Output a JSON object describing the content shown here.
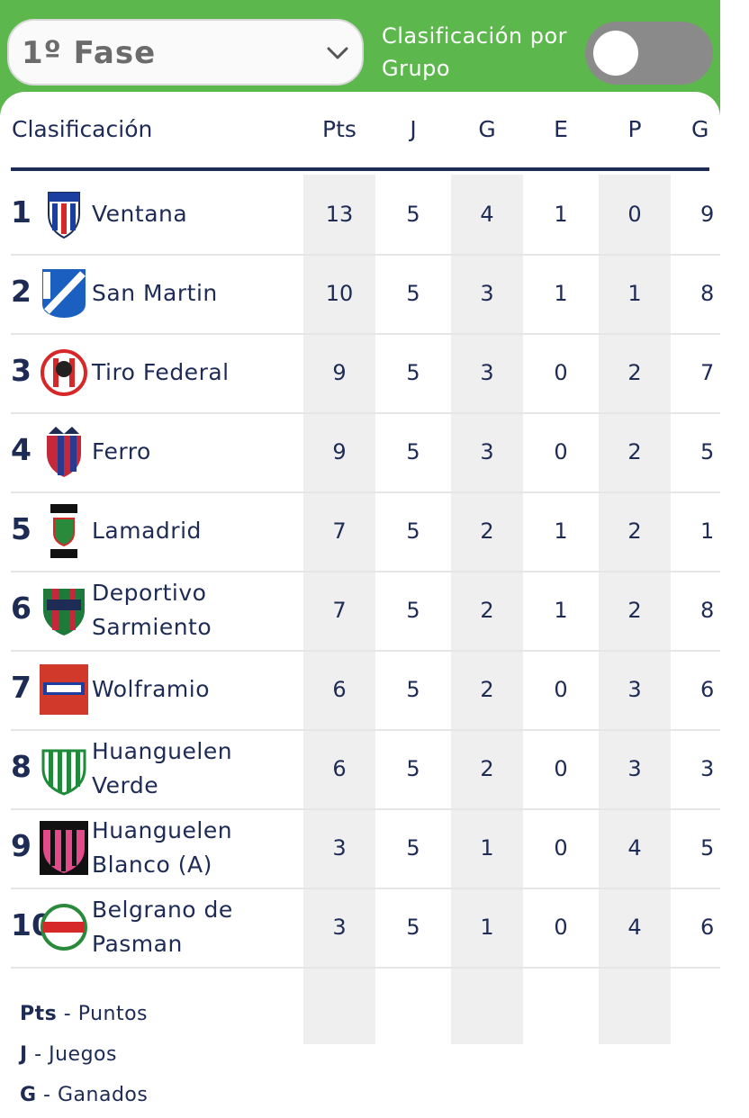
{
  "phase_select": {
    "value": "1º Fase"
  },
  "group_toggle": {
    "label": "Clasificación por Grupo",
    "state": "off"
  },
  "table": {
    "headers": {
      "team": "Clasificación",
      "pts": "Pts",
      "j": "J",
      "g": "G",
      "e": "E",
      "p": "P",
      "gf": "G"
    },
    "rows": [
      {
        "pos": "1",
        "team": "Ventana",
        "pts": "13",
        "j": "5",
        "g": "4",
        "e": "1",
        "p": "0",
        "gf": "9",
        "logo": "shield-cav"
      },
      {
        "pos": "2",
        "team": "San Martin",
        "pts": "10",
        "j": "5",
        "g": "3",
        "e": "1",
        "p": "1",
        "gf": "8",
        "logo": "shield-san-martin"
      },
      {
        "pos": "3",
        "team": "Tiro Federal",
        "pts": "9",
        "j": "5",
        "g": "3",
        "e": "0",
        "p": "2",
        "gf": "7",
        "logo": "shield-tiro-federal"
      },
      {
        "pos": "4",
        "team": "Ferro",
        "pts": "9",
        "j": "5",
        "g": "3",
        "e": "0",
        "p": "2",
        "gf": "5",
        "logo": "shield-ferro"
      },
      {
        "pos": "5",
        "team": "Lamadrid",
        "pts": "7",
        "j": "5",
        "g": "2",
        "e": "1",
        "p": "2",
        "gf": "1",
        "logo": "shield-lamadrid"
      },
      {
        "pos": "6",
        "team": "Deportivo Sarmiento",
        "pts": "7",
        "j": "5",
        "g": "2",
        "e": "1",
        "p": "2",
        "gf": "8",
        "logo": "shield-sarmiento"
      },
      {
        "pos": "7",
        "team": "Wolframio",
        "pts": "6",
        "j": "5",
        "g": "2",
        "e": "0",
        "p": "3",
        "gf": "6",
        "logo": "shield-wolframio"
      },
      {
        "pos": "8",
        "team": "Huanguelen Verde",
        "pts": "6",
        "j": "5",
        "g": "2",
        "e": "0",
        "p": "3",
        "gf": "3",
        "logo": "shield-huanguelen-verde"
      },
      {
        "pos": "9",
        "team": "Huanguelen Blanco (A)",
        "pts": "3",
        "j": "5",
        "g": "1",
        "e": "0",
        "p": "4",
        "gf": "5",
        "logo": "shield-huanguelen-blanco"
      },
      {
        "pos": "10",
        "team": "Belgrano de Pasman",
        "pts": "3",
        "j": "5",
        "g": "1",
        "e": "0",
        "p": "4",
        "gf": "6",
        "logo": "shield-belgrano"
      }
    ]
  },
  "legend": [
    {
      "abbr": "Pts",
      "text": "Puntos"
    },
    {
      "abbr": "J",
      "text": "Juegos"
    },
    {
      "abbr": "G",
      "text": "Ganados"
    }
  ],
  "colors": {
    "header_green": "#5cb84c",
    "navy": "#1d2b55",
    "shade": "#efefef",
    "toggle_off": "#8a8a8a"
  }
}
